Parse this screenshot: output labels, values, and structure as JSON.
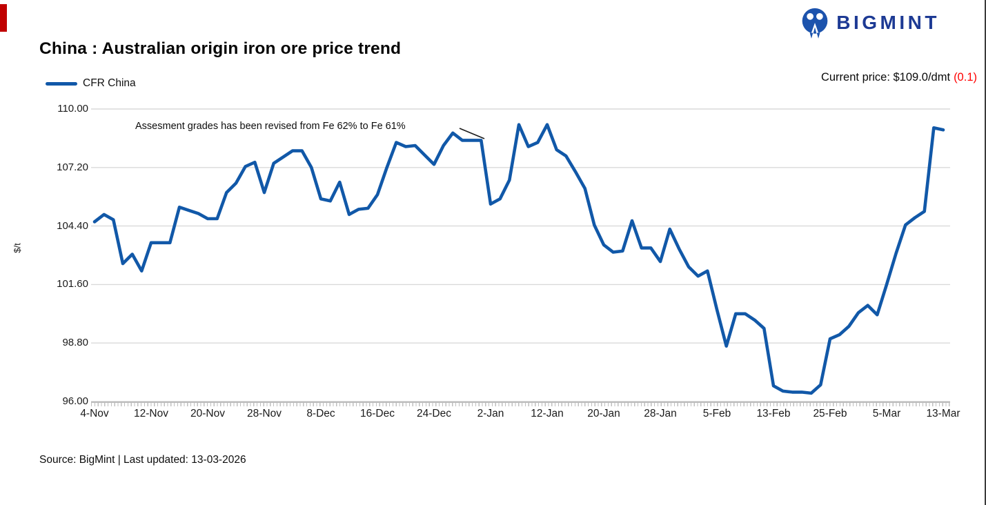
{
  "header": {
    "title": "China : Australian origin iron ore price trend",
    "brand": "BIGMINT",
    "current_price_prefix": "Current price: $109.0/dmt",
    "current_price_change": "(0.1)"
  },
  "legend": {
    "series_label": "CFR China"
  },
  "annotation": {
    "text": "Assesment grades has been revised from Fe 62% to Fe 61%"
  },
  "footer": {
    "source": "Source: BigMint | Last updated: 13-03-2026"
  },
  "colors": {
    "line": "#1158A8",
    "logo_icon": "#1C53AD",
    "logo_text": "#1D3A94",
    "negative": "#FF0000",
    "accent_bar": "#C00000",
    "gridline": "#D9D9D9",
    "axis": "#ABABAB"
  },
  "chart_data": {
    "type": "line",
    "title": "China : Australian origin iron ore price trend",
    "xlabel": "",
    "ylabel": "$/t",
    "ylim": [
      96.0,
      110.0
    ],
    "yticks": [
      96.0,
      98.8,
      101.6,
      104.4,
      107.2,
      110.0
    ],
    "ytick_labels": [
      "96.00",
      "98.80",
      "101.60",
      "104.40",
      "107.20",
      "110.00"
    ],
    "x_tick_labels": [
      "4-Nov",
      "12-Nov",
      "20-Nov",
      "28-Nov",
      "8-Dec",
      "16-Dec",
      "24-Dec",
      "2-Jan",
      "12-Jan",
      "20-Jan",
      "28-Jan",
      "5-Feb",
      "13-Feb",
      "25-Feb",
      "5-Mar",
      "13-Mar"
    ],
    "points_per_tick": 6,
    "grid": "horizontal",
    "legend_position": "top-left",
    "series": [
      {
        "name": "CFR China",
        "values": [
          104.6,
          104.95,
          104.7,
          102.6,
          103.05,
          102.25,
          103.6,
          103.6,
          103.6,
          105.3,
          105.15,
          105.0,
          104.75,
          104.75,
          106.0,
          106.45,
          107.25,
          107.45,
          106.0,
          107.4,
          107.7,
          108.0,
          108.0,
          107.2,
          105.7,
          105.6,
          106.5,
          104.95,
          105.2,
          105.25,
          105.9,
          107.2,
          108.4,
          108.2,
          108.25,
          107.8,
          107.35,
          108.25,
          108.85,
          108.5,
          108.5,
          108.5,
          105.45,
          105.7,
          106.6,
          109.25,
          108.2,
          108.4,
          109.25,
          108.05,
          107.75,
          107.0,
          106.2,
          104.45,
          103.5,
          103.15,
          103.2,
          104.65,
          103.35,
          103.35,
          102.7,
          104.25,
          103.3,
          102.45,
          102.0,
          102.25,
          100.4,
          98.65,
          100.2,
          100.2,
          99.9,
          99.5,
          96.75,
          96.5,
          96.45,
          96.45,
          96.4,
          96.8,
          99.0,
          99.2,
          99.6,
          100.25,
          100.6,
          100.15,
          101.6,
          103.1,
          104.45,
          104.8,
          105.1,
          109.1,
          109.0
        ]
      }
    ]
  }
}
